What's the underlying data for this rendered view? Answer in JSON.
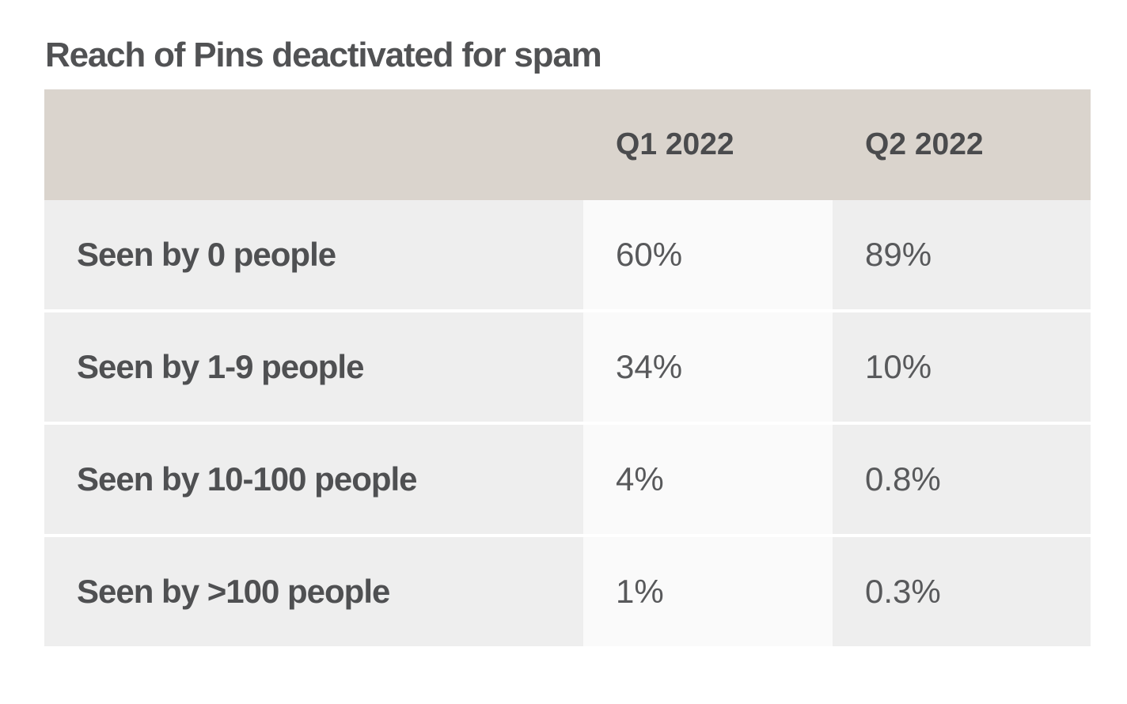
{
  "title": "Reach of Pins deactivated for spam",
  "table": {
    "columns": [
      "Q1 2022",
      "Q2 2022"
    ],
    "rows": [
      {
        "label": "Seen by 0 people",
        "q1": "60%",
        "q2": "89%"
      },
      {
        "label": "Seen by 1-9 people",
        "q1": "34%",
        "q2": "10%"
      },
      {
        "label": "Seen by 10-100 people",
        "q1": "4%",
        "q2": "0.8%"
      },
      {
        "label": "Seen by >100 people",
        "q1": "1%",
        "q2": "0.3%"
      }
    ]
  },
  "colors": {
    "page_background": "#ffffff",
    "header_background": "#dad4cd",
    "row_background": "#eeeeee",
    "q1_column_background": "#fafafa",
    "row_gap": "#ffffff",
    "title_text": "#515254",
    "header_text": "#4a4b4d",
    "label_text": "#4f5052",
    "value_text": "#58595b"
  },
  "chart_data": {
    "type": "table",
    "title": "Reach of Pins deactivated for spam",
    "columns": [
      "",
      "Q1 2022",
      "Q2 2022"
    ],
    "rows": [
      [
        "Seen by 0 people",
        "60%",
        "89%"
      ],
      [
        "Seen by 1-9 people",
        "34%",
        "10%"
      ],
      [
        "Seen by 10-100 people",
        "4%",
        "0.8%"
      ],
      [
        "Seen by >100 people",
        "1%",
        "0.3%"
      ]
    ],
    "series": [
      {
        "name": "Q1 2022",
        "values": [
          60,
          34,
          4,
          1
        ]
      },
      {
        "name": "Q2 2022",
        "values": [
          89,
          10,
          0.8,
          0.3
        ]
      }
    ],
    "categories": [
      "Seen by 0 people",
      "Seen by 1-9 people",
      "Seen by 10-100 people",
      "Seen by >100 people"
    ],
    "unit": "percent",
    "layout": "header row shaded beige; Q1 2022 data column shaded lighter than other cells; rows separated by thin white gaps"
  }
}
